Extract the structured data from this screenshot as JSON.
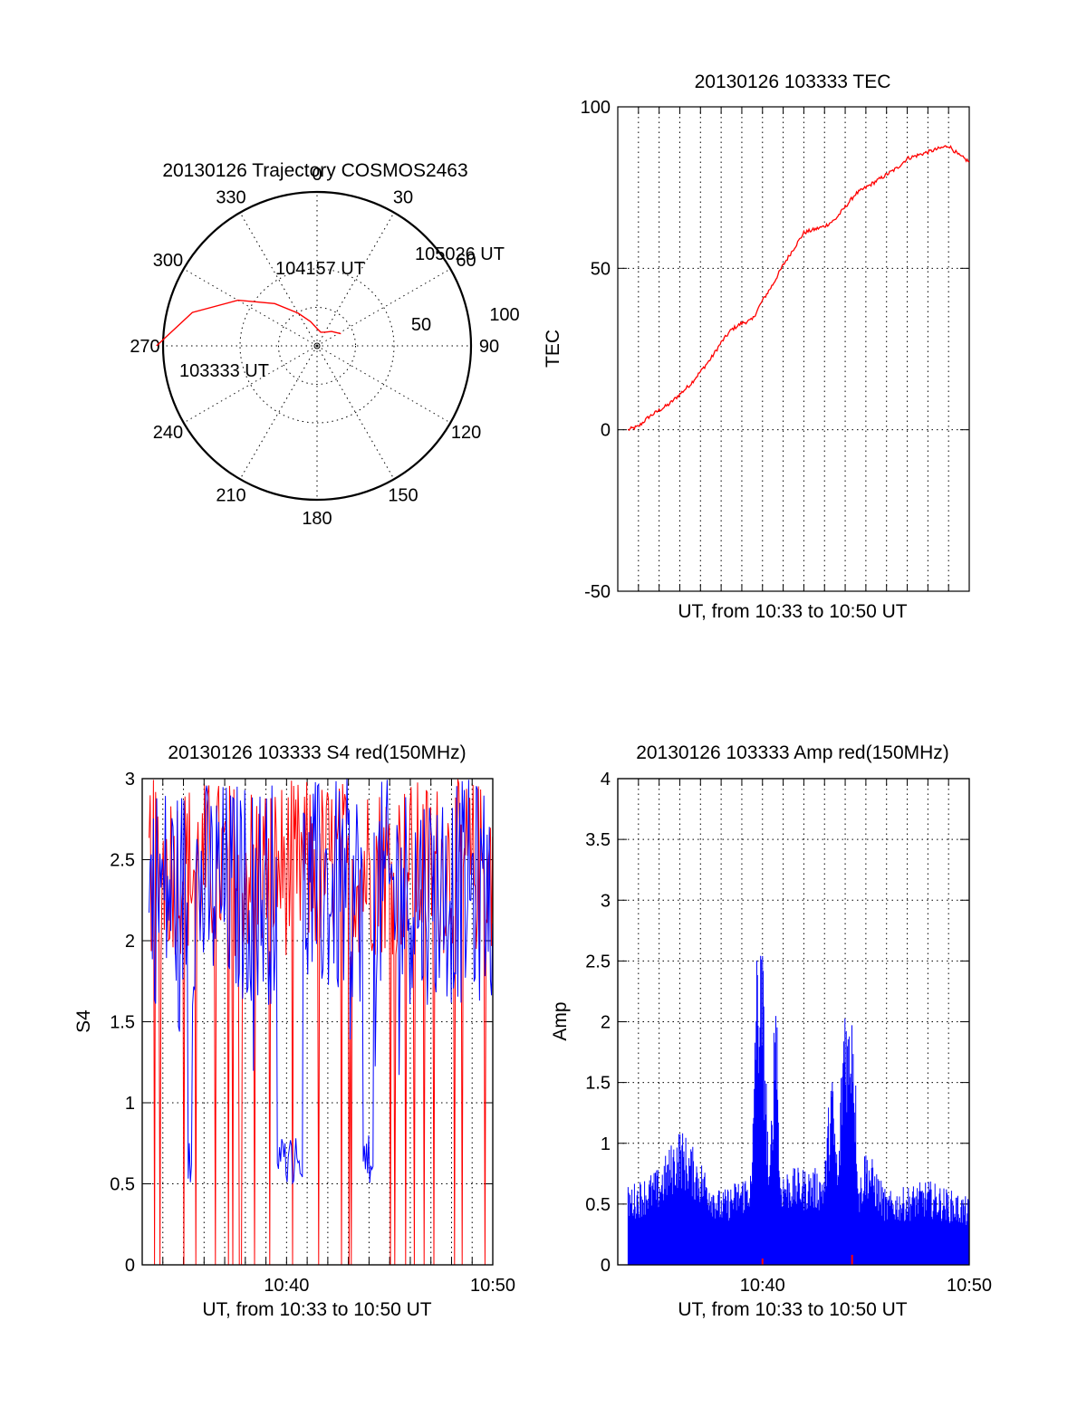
{
  "chart_data": [
    {
      "type": "polar",
      "title": "20130126 Trajectory COSMOS2463",
      "angle_labels": [
        "0",
        "30",
        "60",
        "90",
        "120",
        "150",
        "180",
        "210",
        "240",
        "270",
        "300",
        "330"
      ],
      "angles_deg": [
        0,
        30,
        60,
        90,
        120,
        150,
        180,
        210,
        240,
        270,
        300,
        330
      ],
      "radius_labels": [
        "50",
        "100"
      ],
      "radius_values": [
        50,
        100
      ],
      "rmax": 100,
      "trajectory": {
        "color": "#ff0000",
        "points_az_el": [
          [
            270,
            -12
          ],
          [
            285,
            8
          ],
          [
            300,
            32
          ],
          [
            315,
            52
          ],
          [
            330,
            66
          ],
          [
            345,
            74
          ],
          [
            0,
            79
          ],
          [
            15,
            81
          ],
          [
            30,
            80
          ],
          [
            45,
            77
          ],
          [
            63,
            73
          ]
        ]
      },
      "annotations": [
        {
          "text": "103333 UT",
          "az": 270
        },
        {
          "text": "104157 UT",
          "az": 0
        },
        {
          "text": "105026 UT",
          "az": 63
        }
      ]
    },
    {
      "type": "line",
      "title": "20130126 103333 TEC",
      "xlabel": "UT, from 10:33 to 10:50 UT",
      "ylabel": "TEC",
      "xlim": [
        "10:33",
        "10:50"
      ],
      "ylim": [
        -50,
        100
      ],
      "yticks": [
        "-50",
        "0",
        "50",
        "100"
      ],
      "ytick_values": [
        -50,
        0,
        50,
        100
      ],
      "grid": true,
      "series": [
        {
          "color": "#ff0000",
          "x": [
            "10:33:30",
            "10:34:00",
            "10:34:30",
            "10:35:00",
            "10:35:30",
            "10:36:00",
            "10:36:30",
            "10:37:00",
            "10:37:30",
            "10:38:00",
            "10:38:30",
            "10:39:00",
            "10:39:30",
            "10:40:00",
            "10:40:30",
            "10:41:00",
            "10:41:30",
            "10:42:00",
            "10:42:30",
            "10:43:00",
            "10:43:30",
            "10:44:00",
            "10:44:30",
            "10:45:00",
            "10:45:30",
            "10:46:00",
            "10:46:30",
            "10:47:00",
            "10:47:30",
            "10:48:00",
            "10:48:30",
            "10:49:00",
            "10:49:30",
            "10:50:00"
          ],
          "values": [
            0,
            1,
            4,
            6,
            8,
            11,
            14,
            18,
            22,
            27,
            31,
            33,
            34,
            40,
            45,
            51,
            56,
            61,
            62,
            63,
            65,
            69,
            73,
            75,
            77,
            79,
            81,
            84,
            85,
            86,
            87,
            88,
            85,
            83
          ]
        }
      ]
    },
    {
      "type": "line",
      "title": "20130126 103333 S4 red(150MHz)",
      "xlabel": "UT, from 10:33 to 10:50 UT",
      "ylabel": "S4",
      "xlim": [
        "10:33",
        "10:50"
      ],
      "ylim": [
        0,
        3
      ],
      "yticks": [
        "0",
        "0.5",
        "1",
        "1.5",
        "2",
        "2.5",
        "3"
      ],
      "ytick_values": [
        0,
        0.5,
        1,
        1.5,
        2,
        2.5,
        3
      ],
      "xticks": [
        "10:40",
        "10:50"
      ],
      "grid": true,
      "series": [
        {
          "color": "#ff0000",
          "x_start": "10:33:20",
          "x_end": "10:50:00",
          "values_min": 0,
          "values_max": 3
        },
        {
          "color": "#0000ff",
          "x_start": "10:33:20",
          "x_end": "10:50:00",
          "values_min": 0.5,
          "values_max": 3
        }
      ]
    },
    {
      "type": "line",
      "title": "20130126 103333 Amp red(150MHz)",
      "xlabel": "UT, from 10:33 to 10:50 UT",
      "ylabel": "Amp",
      "xlim": [
        "10:33",
        "10:50"
      ],
      "ylim": [
        0,
        4
      ],
      "yticks": [
        "0",
        "0.5",
        "1",
        "1.5",
        "2",
        "2.5",
        "3",
        "3.5",
        "4"
      ],
      "ytick_values": [
        0,
        0.5,
        1,
        1.5,
        2,
        2.5,
        3,
        3.5,
        4
      ],
      "xticks": [
        "10:40",
        "10:50"
      ],
      "grid": true,
      "series": [
        {
          "color": "#0000ff",
          "x": [
            "10:33:30",
            "10:35:00",
            "10:36:00",
            "10:38:00",
            "10:39:30",
            "10:39:40",
            "10:40:00",
            "10:40:20",
            "10:40:40",
            "10:40:50",
            "10:43:00",
            "10:43:20",
            "10:43:40",
            "10:43:50",
            "10:44:00",
            "10:44:10",
            "10:44:20",
            "10:44:40",
            "10:45:00",
            "10:46:00",
            "10:48:00",
            "10:50:00"
          ],
          "values": [
            0.65,
            0.8,
            1.15,
            0.6,
            0.8,
            2.6,
            2.7,
            0.7,
            2.7,
            0.8,
            0.8,
            1.7,
            0.8,
            1.8,
            2.5,
            2.0,
            2.5,
            0.7,
            1.0,
            0.6,
            0.7,
            0.55
          ]
        },
        {
          "color": "#ff0000",
          "x": [
            "10:40:00",
            "10:44:20"
          ],
          "values": [
            0.03,
            0.06
          ]
        }
      ]
    }
  ]
}
